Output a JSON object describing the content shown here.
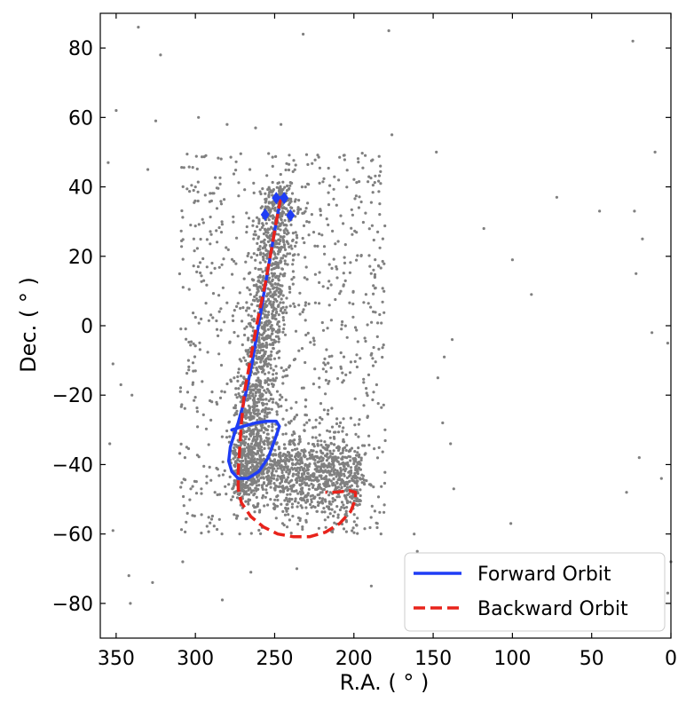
{
  "chart_data": {
    "type": "scatter",
    "title": "",
    "xlabel": "R.A. ($^\\circ$)",
    "ylabel": "Dec. ($^\\circ$)",
    "xlabel_display": "R.A. ( ° )",
    "ylabel_display": "Dec. ( ° )",
    "xlim": [
      360,
      0
    ],
    "ylim": [
      -90,
      90
    ],
    "x_inverted": true,
    "xticks": [
      350,
      300,
      250,
      200,
      150,
      100,
      50,
      0
    ],
    "yticks": [
      -80,
      -60,
      -40,
      -20,
      0,
      20,
      40,
      60,
      80
    ],
    "grid": false,
    "legend_position": "lower-right",
    "series": [
      {
        "name": "Forward Orbit",
        "kind": "line",
        "color": "#1f3df5",
        "style": "solid",
        "x": [
          246,
          249,
          252,
          255,
          258,
          261,
          264,
          267,
          270,
          273,
          276,
          278,
          279,
          277,
          273,
          267,
          260,
          254,
          250,
          247,
          249,
          255,
          262,
          270,
          277
        ],
        "y": [
          37,
          30,
          22,
          14,
          6,
          -2,
          -10,
          -17,
          -23,
          -28,
          -32,
          -35,
          -39,
          -42,
          -44,
          -44,
          -42,
          -38,
          -33,
          -29,
          -27.5,
          -27.5,
          -28,
          -29,
          -30
        ]
      },
      {
        "name": "Backward Orbit",
        "kind": "line",
        "color": "#e8231b",
        "style": "dashed",
        "x": [
          246,
          249,
          252,
          256,
          261,
          265,
          269,
          271,
          272,
          273,
          273,
          271,
          265,
          257,
          248,
          238,
          228,
          218,
          209,
          202,
          199,
          199,
          203,
          208,
          213,
          218
        ],
        "y": [
          37,
          30,
          22,
          12,
          1,
          -9,
          -19,
          -28,
          -35,
          -42,
          -47,
          -51,
          -55,
          -58,
          -60,
          -60.8,
          -60.8,
          -59.5,
          -57,
          -53.5,
          -50,
          -48,
          -47.5,
          -47.8,
          -48,
          -48
        ]
      },
      {
        "name": "",
        "kind": "markers",
        "color": "#1f3df5",
        "marker": "diamond",
        "x": [
          249,
          244,
          256,
          240
        ],
        "y": [
          36.8,
          36.8,
          32,
          31.8
        ]
      },
      {
        "name": "",
        "kind": "scatter",
        "color": "#808080",
        "marker": "dot",
        "n_points_approx": 3500,
        "sample_points": [
          [
            336,
            86
          ],
          [
            232,
            84
          ],
          [
            178,
            85
          ],
          [
            24,
            82
          ],
          [
            322,
            78
          ],
          [
            350,
            62
          ],
          [
            325,
            59
          ],
          [
            298,
            60
          ],
          [
            280,
            58
          ],
          [
            262,
            57
          ],
          [
            246,
            58
          ],
          [
            176,
            55
          ],
          [
            148,
            50
          ],
          [
            10,
            50
          ],
          [
            355,
            47
          ],
          [
            330,
            45
          ],
          [
            300,
            40
          ],
          [
            72,
            37
          ],
          [
            45,
            33
          ],
          [
            23,
            33
          ],
          [
            118,
            28
          ],
          [
            18,
            25
          ],
          [
            100,
            19
          ],
          [
            22,
            15
          ],
          [
            88,
            9
          ],
          [
            12,
            -2
          ],
          [
            2,
            -5
          ],
          [
            138,
            -4
          ],
          [
            143,
            -9
          ],
          [
            147,
            -15
          ],
          [
            352,
            -11
          ],
          [
            347,
            -17
          ],
          [
            340,
            -20
          ],
          [
            354,
            -34
          ],
          [
            352,
            -59
          ],
          [
            342,
            -72
          ],
          [
            341,
            -80
          ],
          [
            327,
            -74
          ],
          [
            308,
            -68
          ],
          [
            283,
            -79
          ],
          [
            265,
            -71
          ],
          [
            236,
            -70
          ],
          [
            189,
            -75
          ],
          [
            158,
            -73
          ],
          [
            160,
            -65
          ],
          [
            162,
            -60
          ],
          [
            144,
            -28
          ],
          [
            139,
            -34
          ],
          [
            137,
            -47
          ],
          [
            101,
            -57
          ],
          [
            20,
            -38
          ],
          [
            6,
            -44
          ],
          [
            0,
            -68
          ],
          [
            2,
            -77
          ],
          [
            28,
            -48
          ]
        ]
      }
    ],
    "clusters": [
      {
        "ra_range": [
          255,
          275
        ],
        "dec_range": [
          -50,
          40
        ]
      },
      {
        "ra_range": [
          195,
          270
        ],
        "dec_range": [
          -65,
          -30
        ]
      },
      {
        "ra_range": [
          215,
          255
        ],
        "dec_range": [
          -20,
          38
        ]
      }
    ]
  }
}
